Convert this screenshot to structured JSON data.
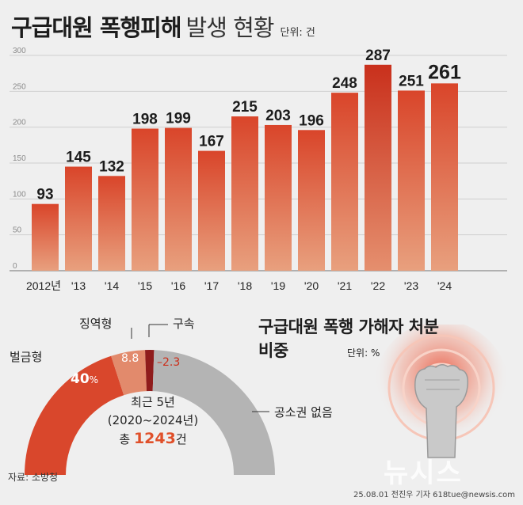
{
  "title": {
    "main": "구급대원 폭행피해",
    "sub": "발생 현황",
    "unit": "단위: 건"
  },
  "chart_data": [
    {
      "type": "bar",
      "categories": [
        "2012년",
        "'13",
        "'14",
        "'15",
        "'16",
        "'17",
        "'18",
        "'19",
        "'20",
        "'21",
        "'22",
        "'23",
        "'24"
      ],
      "values": [
        93,
        145,
        132,
        198,
        199,
        167,
        215,
        203,
        196,
        248,
        287,
        251,
        261
      ],
      "value_labels": [
        "93",
        "145",
        "132",
        "198",
        "199",
        "167",
        "215",
        "203",
        "196",
        "248",
        "287",
        "251",
        "261"
      ],
      "y_ticks": [
        "0",
        "50",
        "100",
        "150",
        "200",
        "250",
        "300"
      ],
      "ylim": [
        0,
        300
      ],
      "grid": true,
      "colors": {
        "bar_top": "#d9452a",
        "bar_bottom": "#e8a07e",
        "peak": "#cc2f1b",
        "grid": "#cfcfcf"
      }
    },
    {
      "type": "pie",
      "subtype": "half-donut",
      "title": "구급대원 폭행 가해자 처분 비중",
      "unit": "단위: %",
      "slices": [
        {
          "name": "벌금형",
          "value": 40,
          "label": "40",
          "color": "#d9472c"
        },
        {
          "name": "징역형",
          "value": 8.8,
          "label": "8.8",
          "color": "#e28a6c"
        },
        {
          "name": "구속",
          "value": 2.3,
          "label": "2.3",
          "color": "#8f1c1c"
        },
        {
          "name": "공소권 없음",
          "value": 48.9,
          "label": "",
          "color": "#b4b4b4"
        }
      ],
      "percent_sign": "%",
      "center": {
        "line1": "최근 5년",
        "line2": "(2020~2024년)",
        "total_prefix": "총",
        "total_value": "1243",
        "total_suffix": "건"
      }
    }
  ],
  "source": "자료: 소방청",
  "credit": "25.08.01 전진우 기자 618tue@newsis.com",
  "watermark": "뉴시스",
  "decor": {
    "icon": "raised-fist-icon"
  }
}
